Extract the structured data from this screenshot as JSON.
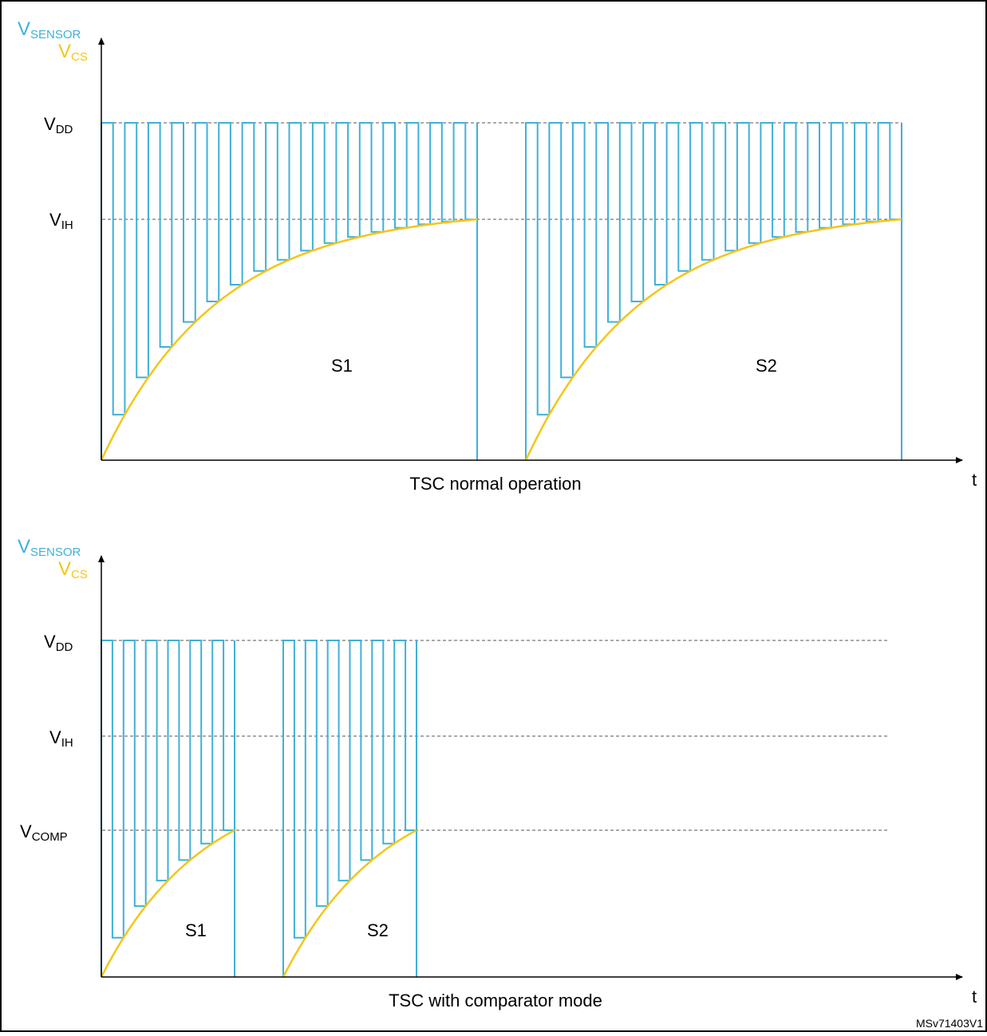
{
  "figure_id": "MSv71403V1",
  "colors": {
    "sensor": "#3fb0d8",
    "cs": "#f5c518",
    "axis": "#000000",
    "ref_line": "#555555"
  },
  "panels": [
    {
      "caption": "TSC normal operation",
      "y_axis": {
        "top_main": "V",
        "top_sub": "SENSOR",
        "second_main": "V",
        "second_sub": "CS"
      },
      "x_axis_label": "t",
      "levels": [
        {
          "main": "V",
          "sub": "DD"
        },
        {
          "main": "V",
          "sub": "IH"
        }
      ],
      "segments": [
        {
          "label": "S1",
          "pulses": 16
        },
        {
          "label": "S2",
          "pulses": 16
        }
      ]
    },
    {
      "caption": "TSC with comparator mode",
      "y_axis": {
        "top_main": "V",
        "top_sub": "SENSOR",
        "second_main": "V",
        "second_sub": "CS"
      },
      "x_axis_label": "t",
      "levels": [
        {
          "main": "V",
          "sub": "DD"
        },
        {
          "main": "V",
          "sub": "IH"
        },
        {
          "main": "V",
          "sub": "COMP"
        }
      ],
      "segments": [
        {
          "label": "S1",
          "pulses": 6
        },
        {
          "label": "S2",
          "pulses": 6
        }
      ]
    }
  ]
}
